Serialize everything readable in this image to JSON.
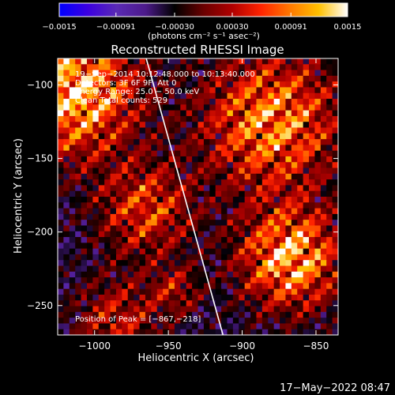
{
  "chart_data": {
    "type": "heatmap",
    "title": "Reconstructed RHESSI Image",
    "xlabel": "Heliocentric X (arcsec)",
    "ylabel": "Heliocentric Y (arcsec)",
    "xlim": [
      -1025,
      -835
    ],
    "ylim": [
      -270,
      -82
    ],
    "xticks": [
      -1000,
      -950,
      -900,
      -850
    ],
    "yticks": [
      -100,
      -150,
      -200,
      -250
    ],
    "xtick_labels": [
      "−1000",
      "−950",
      "−900",
      "−850"
    ],
    "ytick_labels": [
      "−100",
      "−150",
      "−200",
      "−250"
    ],
    "colorbar": {
      "range": [
        -0.0015,
        0.0015
      ],
      "ticks": [
        -0.0015,
        -0.00091,
        -0.0003,
        0.0003,
        0.00091,
        0.0015
      ],
      "tick_labels": [
        "−0.0015",
        "−0.00091",
        "−0.00030",
        "0.00030",
        "0.00091",
        "0.0015"
      ],
      "units": "(photons cm⁻² s⁻¹ asec⁻²)"
    },
    "annotations": [
      "19−Sep−2014 10:12:48.000 to 10:13:40.000",
      "Detectors: 3F 6F 9F, Att 0",
      "Energy Range: 25.0 − 50.0 keV",
      "Clean     Total counts: 529"
    ],
    "peak_label": "Position of Peak = [−867,−218]",
    "peak": [
      -867,
      -218
    ],
    "limb_line": [
      [
        -965,
        -82
      ],
      [
        -913,
        -270
      ]
    ]
  },
  "footer": {
    "timestamp": "17−May−2022 08:47"
  },
  "colors": {
    "background": "#000000",
    "colormap": [
      "#0000ff",
      "#3c00e0",
      "#5a2ab4",
      "#4c1a8a",
      "#000000",
      "#6a0000",
      "#b00000",
      "#ff2400",
      "#ff7800",
      "#ffc000",
      "#ffffff"
    ]
  }
}
